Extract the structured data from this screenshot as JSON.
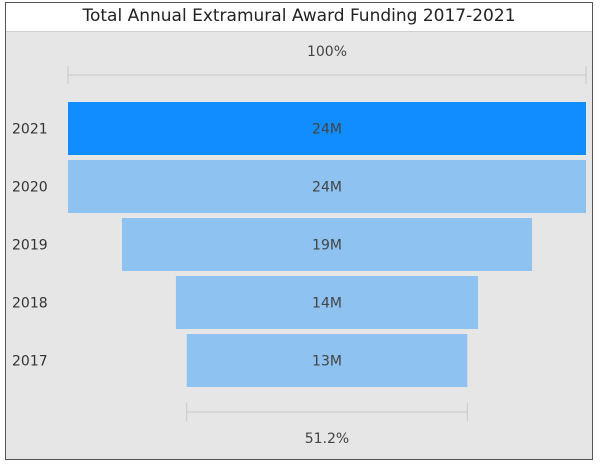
{
  "chart_data": {
    "type": "funnel",
    "title": "Total Annual Extramural Award Funding 2017-2021",
    "categories": [
      "2021",
      "2020",
      "2019",
      "2018",
      "2017"
    ],
    "values": [
      24,
      24,
      19,
      14,
      13
    ],
    "value_labels": [
      "24M",
      "24M",
      "19M",
      "14M",
      "13M"
    ],
    "unit": "M",
    "top_percent_label": "100%",
    "bottom_percent_label": "51.2%",
    "highlighted_category": "2021",
    "colors": {
      "highlight": "#118dff",
      "bar": "#8ec2f0",
      "background": "#e6e6e6"
    }
  }
}
